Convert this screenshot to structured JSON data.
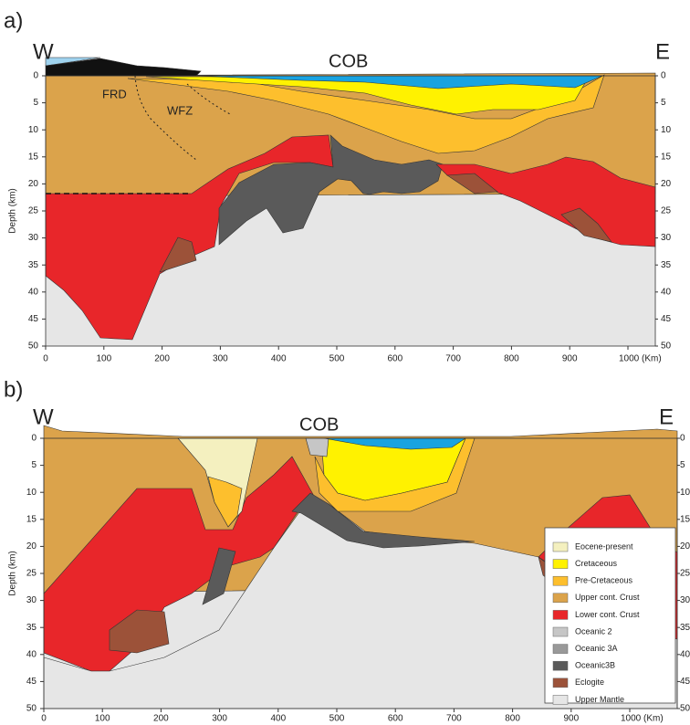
{
  "chart_data": [
    {
      "type": "cross-section",
      "panel": "a)",
      "west": "W",
      "east": "E",
      "cob": "COB",
      "annotations": [
        "FRD",
        "WFZ"
      ],
      "ylabel": "Depth (km)",
      "invert_y": true,
      "xlim": [
        0,
        1047
      ],
      "xticks": [
        0,
        100,
        200,
        300,
        400,
        500,
        600,
        700,
        800,
        900,
        {
          "value": 1000,
          "label": "1000 (Km)"
        }
      ],
      "ylim": [
        0,
        50
      ],
      "yticks": [
        0,
        5,
        10,
        15,
        20,
        25,
        30,
        35,
        40,
        45,
        50
      ]
    },
    {
      "type": "cross-section",
      "panel": "b)",
      "west": "W",
      "east": "E",
      "cob": "COB",
      "ylabel": "Depth (km)",
      "invert_y": true,
      "xlim": [
        0,
        1081
      ],
      "xticks": [
        0,
        100,
        200,
        300,
        400,
        500,
        600,
        700,
        800,
        900,
        {
          "value": 1000,
          "label": "1000 (Km)"
        }
      ],
      "ylim": [
        0,
        50
      ],
      "yticks": [
        0,
        5,
        10,
        15,
        20,
        25,
        30,
        35,
        40,
        45,
        50
      ],
      "legend": [
        {
          "name": "Eocene-present",
          "color": "#f4f0bf"
        },
        {
          "name": "Cretaceous",
          "color": "#fff200"
        },
        {
          "name": "Pre-Cretaceous",
          "color": "#fdbf2d"
        },
        {
          "name": "Upper cont. Crust",
          "color": "#dba34b"
        },
        {
          "name": "Lower cont. Crust",
          "color": "#e8262a"
        },
        {
          "name": "Oceanic 2",
          "color": "#c6c6c6"
        },
        {
          "name": "Oceanic 3A",
          "color": "#999999"
        },
        {
          "name": "Oceanic3B",
          "color": "#5a5a5a"
        },
        {
          "name": "Eclogite",
          "color": "#9c5239"
        },
        {
          "name": "Upper Mantle",
          "color": "#e6e6e6"
        }
      ]
    }
  ]
}
